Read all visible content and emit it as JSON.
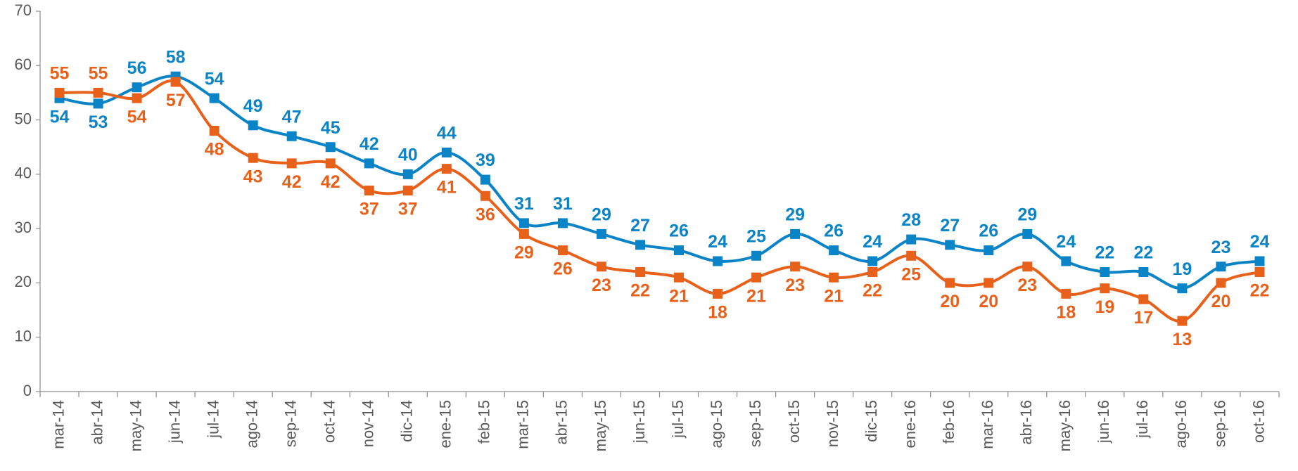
{
  "chart_data": {
    "type": "line",
    "categories": [
      "mar-14",
      "abr-14",
      "may-14",
      "jun-14",
      "jul-14",
      "ago-14",
      "sep-14",
      "oct-14",
      "nov-14",
      "dic-14",
      "ene-15",
      "feb-15",
      "mar-15",
      "abr-15",
      "may-15",
      "jun-15",
      "jul-15",
      "ago-15",
      "sep-15",
      "oct-15",
      "nov-15",
      "dic-15",
      "ene-16",
      "feb-16",
      "mar-16",
      "abr-16",
      "may-16",
      "jun-16",
      "jul-16",
      "ago-16",
      "sep-16",
      "oct-16"
    ],
    "series": [
      {
        "color": "#0a84c6",
        "values": [
          54,
          53,
          56,
          58,
          54,
          49,
          47,
          45,
          42,
          40,
          44,
          39,
          31,
          31,
          29,
          27,
          26,
          24,
          25,
          29,
          26,
          24,
          28,
          27,
          26,
          29,
          24,
          22,
          22,
          19,
          23,
          24
        ]
      },
      {
        "color": "#e8611a",
        "values": [
          55,
          55,
          54,
          57,
          48,
          43,
          42,
          42,
          37,
          37,
          41,
          36,
          29,
          26,
          23,
          22,
          21,
          18,
          21,
          23,
          21,
          22,
          25,
          20,
          20,
          23,
          18,
          19,
          17,
          13,
          20,
          22
        ]
      }
    ],
    "ylim": [
      0,
      70
    ],
    "yticks": [
      0,
      10,
      20,
      30,
      40,
      50,
      60,
      70
    ],
    "grid": false,
    "smooth": true
  }
}
